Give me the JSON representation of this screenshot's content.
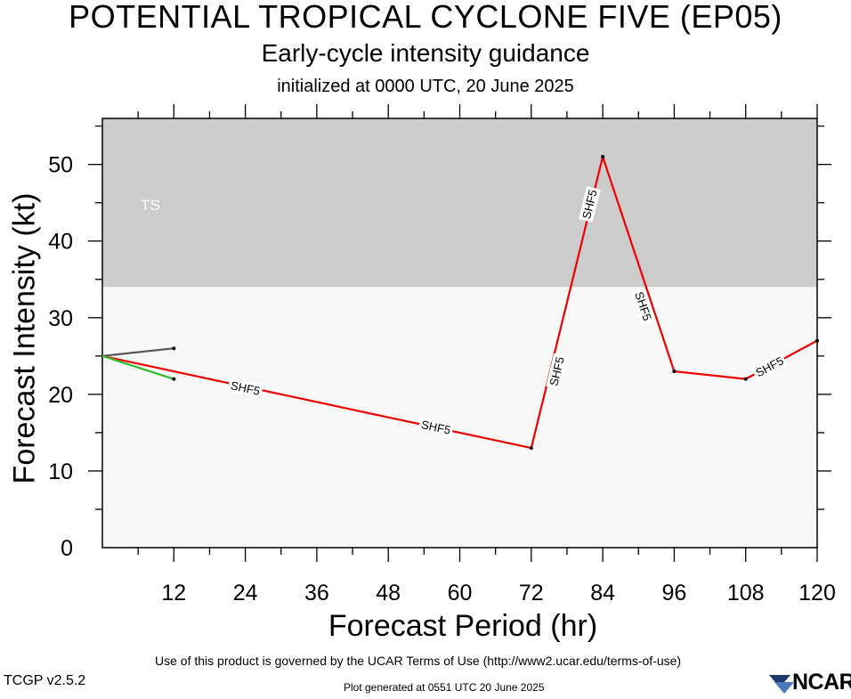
{
  "header": {
    "title": "POTENTIAL TROPICAL CYCLONE FIVE (EP05)",
    "subtitle": "Early-cycle intensity guidance",
    "initialized": "initialized at 0000 UTC, 20 June 2025"
  },
  "footer": {
    "terms": "Use of this product is governed by the UCAR Terms of Use (http://www2.ucar.edu/terms-of-use)",
    "version": "TCGP v2.5.2",
    "generated": "Plot generated at 0551 UTC   20 June 2025",
    "logo_text": "NCAR"
  },
  "chart_data": {
    "type": "line",
    "xlabel": "Forecast Period (hr)",
    "ylabel": "Forecast Intensity (kt)",
    "xlim": [
      0,
      120
    ],
    "ylim": [
      0,
      56
    ],
    "xticks": [
      12,
      24,
      36,
      48,
      60,
      72,
      84,
      96,
      108,
      120
    ],
    "yticks": [
      0,
      10,
      20,
      30,
      40,
      50
    ],
    "bands": [
      {
        "label": "TS",
        "from": 34,
        "to": 56,
        "color": "#cccccc"
      },
      {
        "label": "",
        "from": 0,
        "to": 34,
        "color": "#f8f8f8"
      }
    ],
    "series": [
      {
        "name": "SHF5",
        "color": "#ee0000",
        "x": [
          0,
          72,
          84,
          96,
          108,
          120
        ],
        "y": [
          25,
          13,
          51,
          23,
          22,
          27
        ]
      },
      {
        "name": "",
        "color": "#555555",
        "x": [
          0,
          12
        ],
        "y": [
          25,
          26
        ]
      },
      {
        "name": "",
        "color": "#33bb33",
        "x": [
          0,
          12
        ],
        "y": [
          25,
          22
        ]
      }
    ],
    "line_labels": [
      {
        "text": "SHF5",
        "x": 24,
        "y": 20.8
      },
      {
        "text": "SHF5",
        "x": 56,
        "y": 15.7
      },
      {
        "text": "SHF5",
        "x": 76.3,
        "y": 23
      },
      {
        "text": "SHF5",
        "x": 81.8,
        "y": 44.8
      },
      {
        "text": "SHF5",
        "x": 90.8,
        "y": 31.5
      },
      {
        "text": "SHF5",
        "x": 112,
        "y": 23.6
      }
    ]
  }
}
